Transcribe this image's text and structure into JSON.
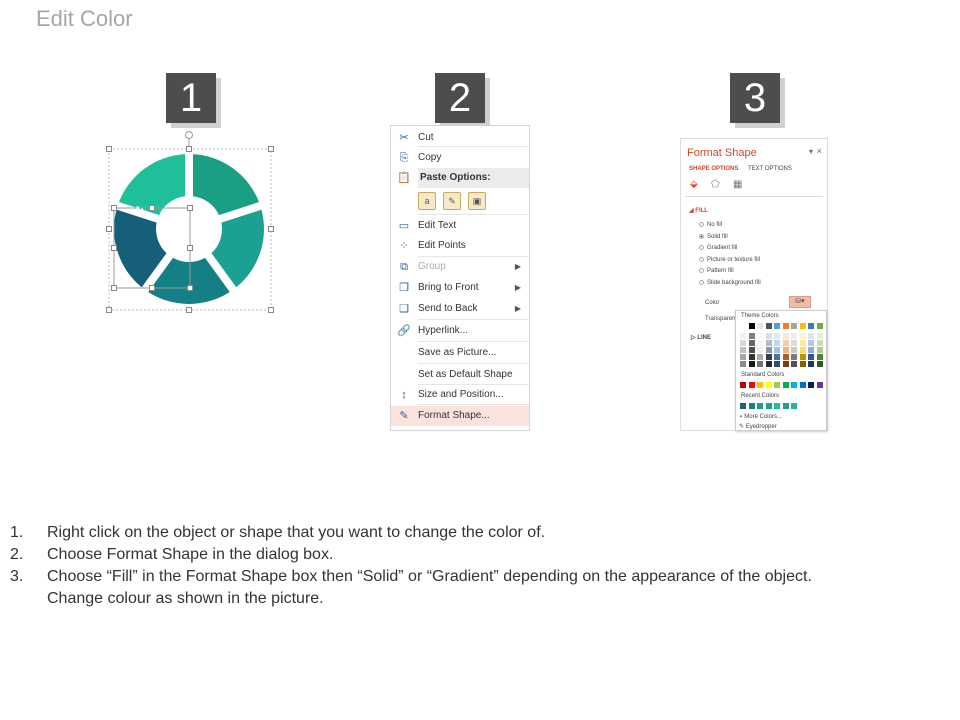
{
  "title": "Edit Color",
  "step_numbers": [
    "1",
    "2",
    "3"
  ],
  "donut_colors": [
    "#1a9e84",
    "#1ca092",
    "#157f86",
    "#155f78",
    "#1fbf9a"
  ],
  "context_menu": {
    "items": [
      {
        "label": "Cut",
        "icon": "scissors-icon",
        "glyph": "✂"
      },
      {
        "label": "Copy",
        "icon": "copy-icon",
        "glyph": "⎘"
      },
      {
        "label": "Paste Options:",
        "icon": "paste-icon",
        "glyph": "📋",
        "header": true
      },
      {
        "label": "Edit Text",
        "icon": "edit-text-icon",
        "glyph": "▭"
      },
      {
        "label": "Edit Points",
        "icon": "edit-points-icon",
        "glyph": "⁘"
      },
      {
        "label": "Group",
        "icon": "group-icon",
        "glyph": "⧉",
        "disabled": true,
        "submenu": true
      },
      {
        "label": "Bring to Front",
        "icon": "bring-to-front-icon",
        "glyph": "❐",
        "submenu": true
      },
      {
        "label": "Send to Back",
        "icon": "send-to-back-icon",
        "glyph": "❏",
        "submenu": true
      },
      {
        "label": "Hyperlink...",
        "icon": "hyperlink-icon",
        "glyph": "🔗"
      },
      {
        "label": "Save as Picture...",
        "icon": "",
        "glyph": ""
      },
      {
        "label": "Set as Default Shape",
        "icon": "",
        "glyph": ""
      },
      {
        "label": "Size and Position...",
        "icon": "size-position-icon",
        "glyph": "↕"
      },
      {
        "label": "Format Shape...",
        "icon": "format-shape-icon",
        "glyph": "✎",
        "highlighted": true
      }
    ]
  },
  "format_panel": {
    "title": "Format Shape",
    "tabs": [
      "SHAPE OPTIONS",
      "TEXT OPTIONS"
    ],
    "fill_header": "FILL",
    "fill_options": [
      "No fill",
      "Solid fill",
      "Gradient fill",
      "Picture or texture fill",
      "Pattern fill",
      "Slide background fill"
    ],
    "selected_fill": "Solid fill",
    "color_label": "Color",
    "transparency_label": "Transparenc",
    "line_header": "LINE",
    "palette": {
      "theme_label": "Theme Colors",
      "theme_colors": [
        "#ffffff",
        "#000000",
        "#e7e6e6",
        "#44546a",
        "#5b9bd5",
        "#ed7d31",
        "#a5a5a5",
        "#ffc000",
        "#4472c4",
        "#70ad47"
      ],
      "standard_label": "Standard Colors",
      "standard_colors": [
        "#c00000",
        "#ff0000",
        "#ffc000",
        "#ffff00",
        "#92d050",
        "#00b050",
        "#00b0f0",
        "#0070c0",
        "#002060",
        "#7030a0"
      ],
      "recent_label": "Recent Colors",
      "recent_colors": [
        "#1f5f6f",
        "#157f86",
        "#1a9e84",
        "#1ca092",
        "#1fbf9a",
        "#20a090",
        "#26b0a0"
      ],
      "more_colors": "More Colors...",
      "eyedropper": "Eyedropper"
    }
  },
  "steps": [
    {
      "n": "1.",
      "text": "Right click on the object or shape that you want to change the color of."
    },
    {
      "n": "2.",
      "text": "Choose Format Shape in the dialog box."
    },
    {
      "n": "3.",
      "text": "Choose “Fill” in the Format Shape box then “Solid” or “Gradient” depending on the appearance of the object."
    },
    {
      "n": "",
      "text": "Change colour as shown in the picture."
    }
  ]
}
